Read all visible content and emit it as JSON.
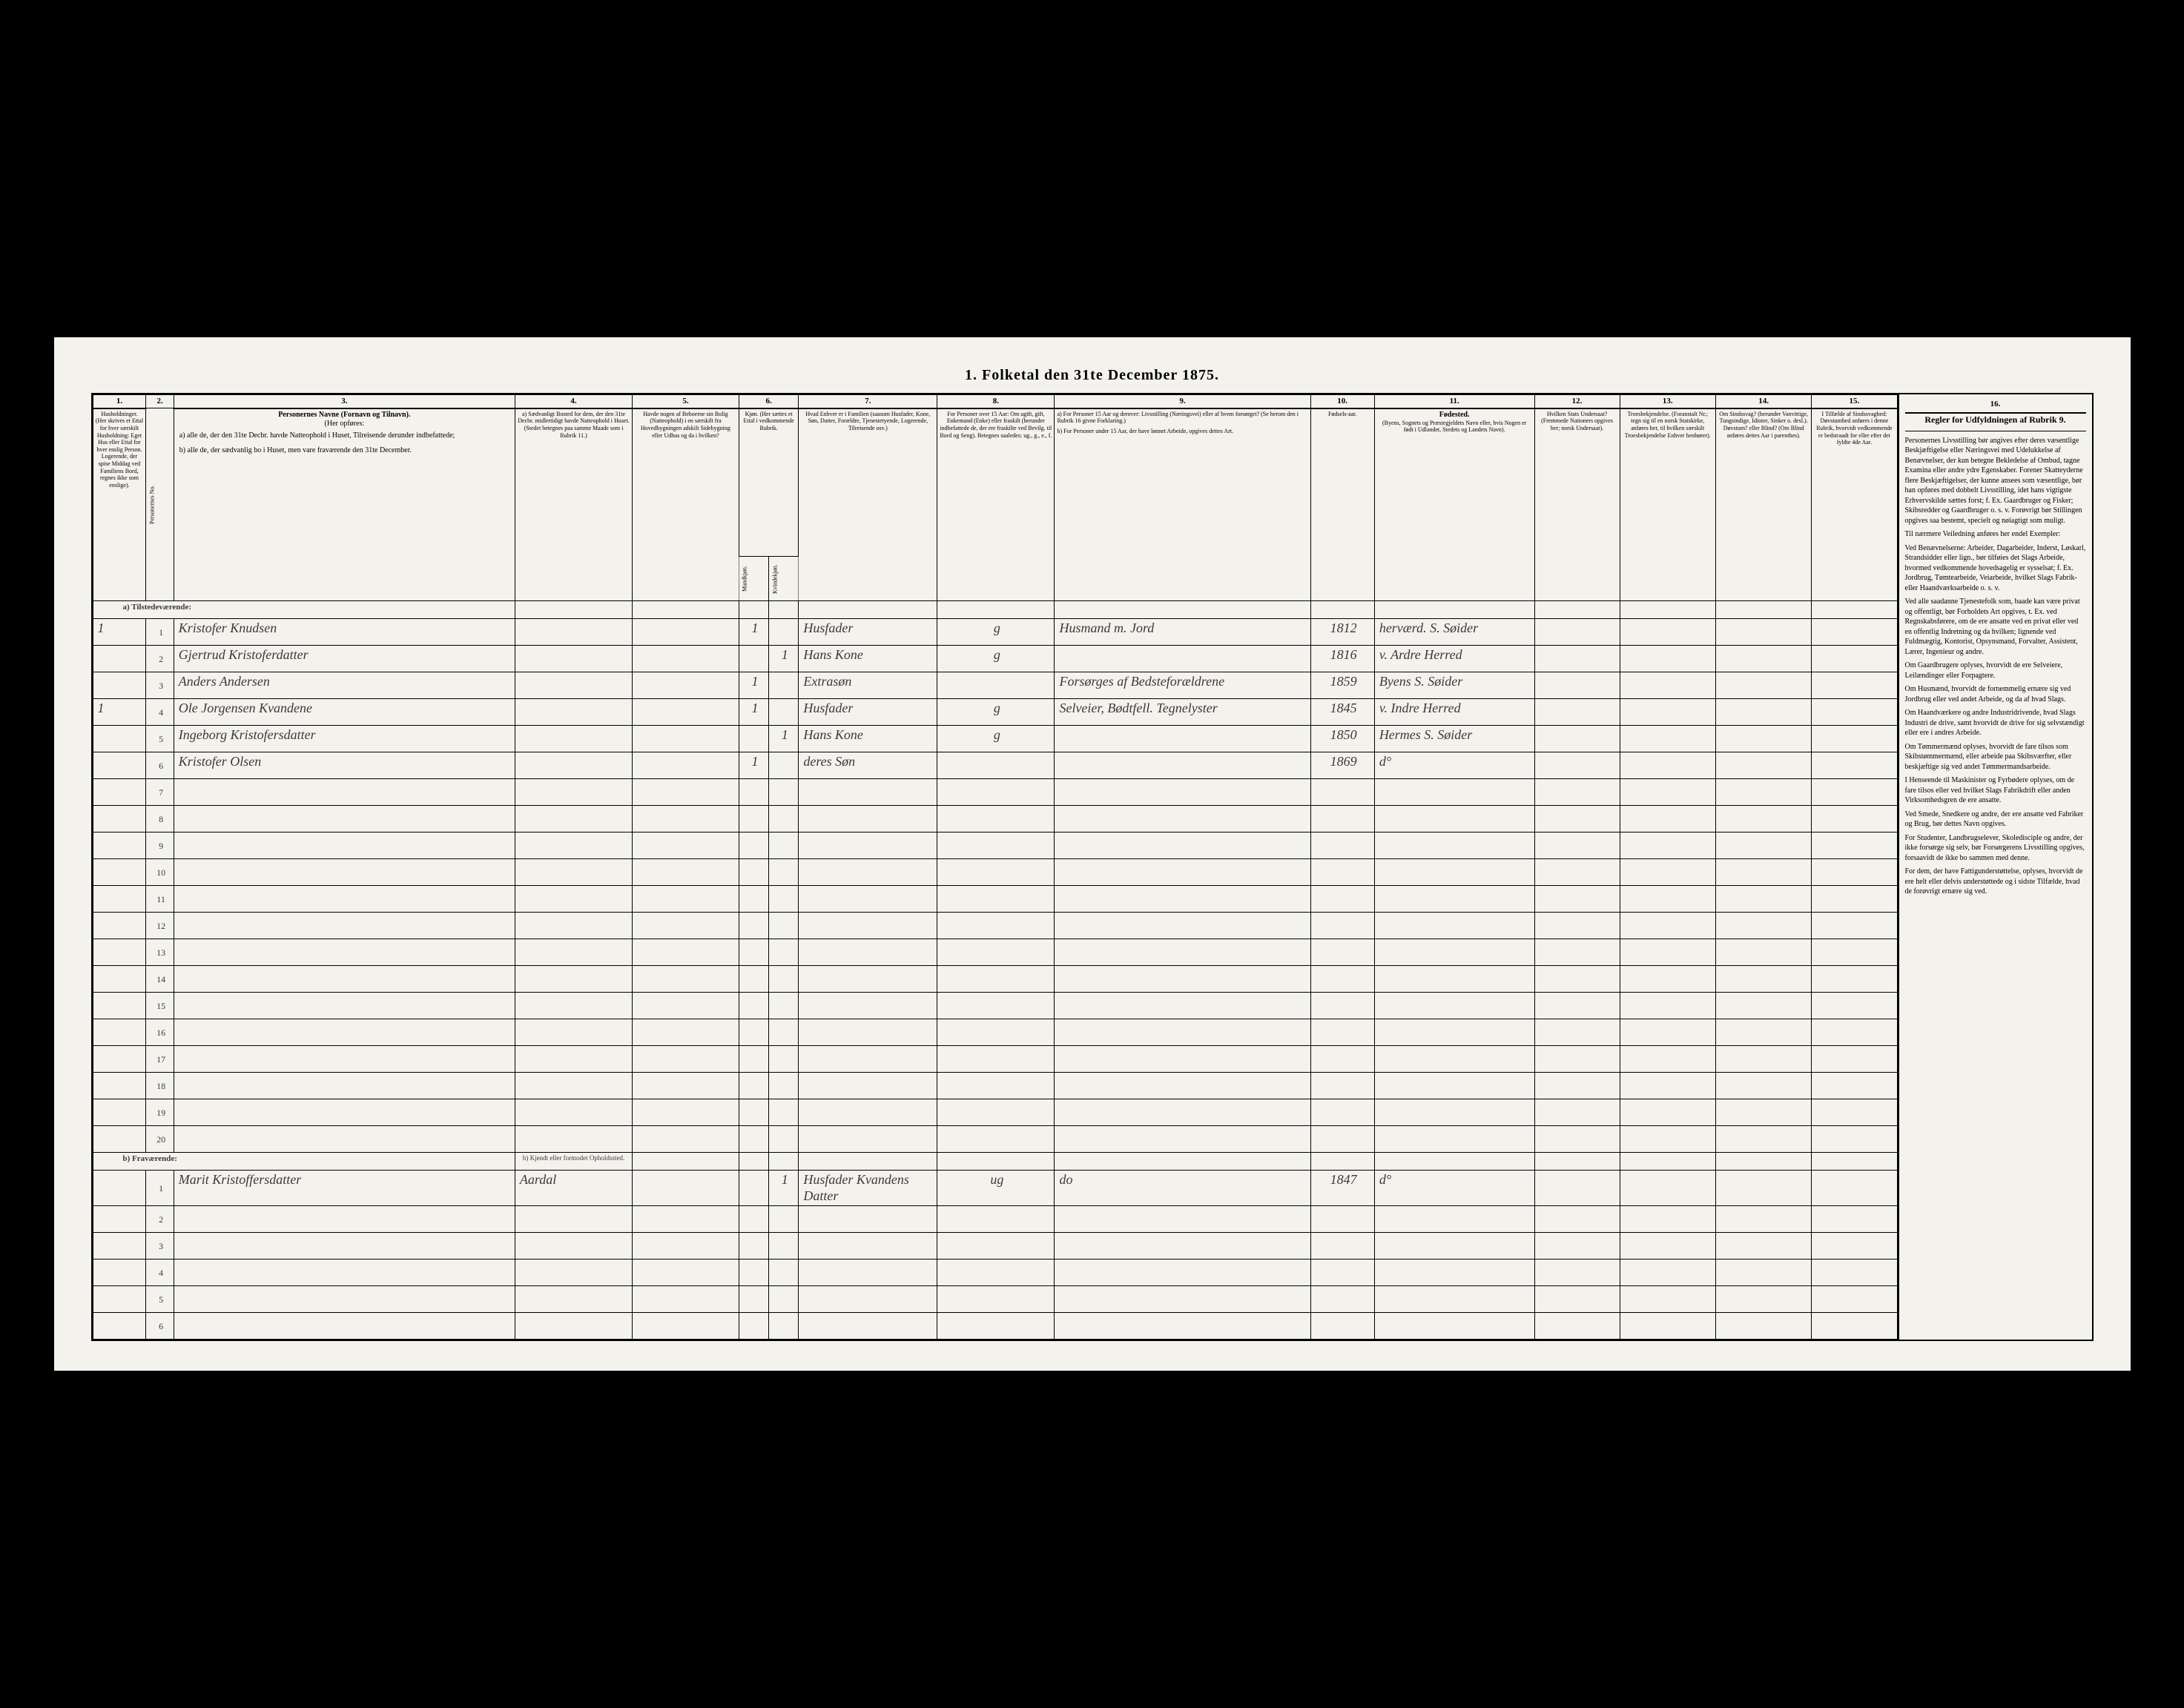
{
  "title": "1. Folketal den 31te December 1875.",
  "columns": {
    "c1": "1.",
    "c2": "2.",
    "c3": "3.",
    "c4": "4.",
    "c5": "5.",
    "c6": "6.",
    "c7": "7.",
    "c8": "8.",
    "c9": "9.",
    "c10": "10.",
    "c11": "11.",
    "c12": "12.",
    "c13": "13.",
    "c14": "14.",
    "c15": "15.",
    "c16": "16."
  },
  "headers": {
    "h1": "Husholdninger. (Her skrives et Ettal for hver særskilt Husholdning: Eget Hus eller Ettal for hver enslig Person. Logerende, der spise Middag ved Familiens Bord, regnes ikke som enslige).",
    "h2": "Personernes No.",
    "h3_title": "Personernes Navne (Fornavn og Tilnavn).",
    "h3_sub": "(Her opføres:",
    "h3_a": "a) alle de, der den 31te Decbr. havde Natteophold i Huset, Tilreisende derunder indbefattede;",
    "h3_b": "b) alle de, der sædvanlig bo i Huset, men vare fraværende den 31te December.",
    "h4": "a) Sædvanligt Bosted for dem, der den 31te Decbr. midlertidigt havde Natteophold i Huset. (Stedet betegnes paa samme Maade som i Rubrik 11.)",
    "h5": "Havde nogen af Beboerne sin Bolig (Natteophold) i en særskilt fra Hovedbygningen adskilt Sidebygning eller Udhus og da i hvilken?",
    "h6": "Kjøn. (Her sættes et Ettal i vedkommende Rubrik.",
    "h6_m": "Mandkjøn.",
    "h6_k": "Kvindekjøn.",
    "h7": "Hvad Enhver er i Familien (saasom Husfader, Kone, Søn, Datter, Forældre, Tjenestetyende, Logerende, Tilreisende osv.)",
    "h8": "For Personer over 15 Aar: Om ugift, gift, Enkemand (Enke) eller fraskilt (herunder indbefattede de, der ere fraskilte ved Bevilg. til Bord og Seng). Betegnes saaledes: ug., g., e., f.",
    "h9_a": "a) For Personer 15 Aar og derover: Livsstilling (Næringsvei) eller af hvem forsørget? (Se herom den i Rubrik 16 givne Forklaring.)",
    "h9_b": "b) For Personer under 15 Aar, der have lønnet Arbeide, opgives dettes Art.",
    "h10": "Fødsels-aar.",
    "h11_title": "Fødested.",
    "h11_sub": "(Byens, Sognets og Præstegjeldets Navn eller, hvis Nogen er født i Udlandet, Stedets og Landets Navn).",
    "h12": "Hvilken Stats Undersaat? (Fremmede Nationers opgives her; norsk Undersaat).",
    "h13": "Troesbekjendelse. (Foranstalt Nr.; tegn sig til en norsk Statskirke, anføres her, til hvilken særskilt Troesbekjendelse Enhver henhører).",
    "h14": "Om Sindssvag? (herunder Vanvittige, Tungsindige, Idioter, Sinker o. desl.). Døvstum? eller Blind? (Om Blind anføres dettes Aar i parenthes).",
    "h15": "I Tilfælde af Sindssvaghed: Døvstumhed anføres i denne Rubrik, hvorvidt vedkommende er bedstraadt for eller efter det fyldte 4de Aar.",
    "h16_title": "Regler for Udfyldningen af Rubrik 9."
  },
  "sections": {
    "present": "a) Tilstedeværende:",
    "absent": "b) Fraværende:",
    "absent_col4": "b) Kjendt eller formodet Opholdssted."
  },
  "rows": [
    {
      "hh": "1",
      "no": "1",
      "name": "Kristofer Knudsen",
      "c6m": "1",
      "c7": "Husfader",
      "c8": "g",
      "c9": "Husmand m. Jord",
      "c10": "1812",
      "c11": "herværd. S. Søider"
    },
    {
      "hh": "",
      "no": "2",
      "name": "Gjertrud Kristoferdatter",
      "c6k": "1",
      "c7": "Hans Kone",
      "c8": "g",
      "c9": "",
      "c10": "1816",
      "c11": "v. Ardre Herred"
    },
    {
      "hh": "",
      "no": "3",
      "name": "Anders Andersen",
      "c6m": "1",
      "c7": "Extrasøn",
      "c8": "",
      "c9": "Forsørges af Bedsteforældrene",
      "c10": "1859",
      "c11": "Byens S. Søider"
    },
    {
      "hh": "1",
      "no": "4",
      "name": "Ole Jorgensen Kvandene",
      "c6m": "1",
      "c7": "Husfader",
      "c8": "g",
      "c9": "Selveier, Bødtfell. Tegnelyster",
      "c10": "1845",
      "c11": "v. Indre Herred"
    },
    {
      "hh": "",
      "no": "5",
      "name": "Ingeborg Kristofersdatter",
      "c6k": "1",
      "c7": "Hans Kone",
      "c8": "g",
      "c9": "",
      "c10": "1850",
      "c11": "Hermes S. Søider"
    },
    {
      "hh": "",
      "no": "6",
      "name": "Kristofer Olsen",
      "c6m": "1",
      "c7": "deres Søn",
      "c8": "",
      "c9": "",
      "c10": "1869",
      "c11": "d°"
    }
  ],
  "absent_rows": [
    {
      "no": "1",
      "name": "Marit Kristoffersdatter",
      "c4": "Aardal",
      "c6k": "1",
      "c7": "Husfader Kvandens Datter",
      "c8": "ug",
      "c9": "do",
      "c10": "1847",
      "c11": "d°"
    }
  ],
  "rubric_text": {
    "p1": "Personernes Livsstilling bør angives efter deres væsentlige Beskjæftigelse eller Næringsvei med Udelukkelse af Benævnelser, der kun betegne Bekledelse af Ombud, tagne Examina eller andre ydre Egenskaber. Forener Skatteyderne flere Beskjæftigelser, der kunne ansees som væsentlige, bør han opføres med dobbelt Livsstilling, idet hans vigtigste Erhvervskilde sættes forst; f. Ex. Gaardbruger og Fisker; Skibsredder og Gaardbruger o. s. v. Forøvrigt bør Stillingen opgives saa bestemt, specielt og nøiagtigt som muligt.",
    "p2": "Til nærmere Veiledning anføres her endel Exempler:",
    "p3": "Ved Benævnelserne: Arbeider, Dagarbeider, Inderst, Løskarl, Strandsidder eller lign., bør tilføies det Slags Arbeide, hvormed vedkommende hovedsagelig er sysselsat; f. Ex. Jordbrug, Tømtearbeide, Veiarbeide, hvilket Slags Fabrik- eller Haandværksarbeide o. s. v.",
    "p4": "Ved alle saadanne Tjenestefolk som, baade kan være privat og offentligt, bør Forholdets Art opgives, t. Ex. ved Regnskabsførere, om de ere ansatte ved en privat eller ved en offentlig Indretning og da hvilken; lignende ved Fuldmægtig, Kontorist, Opsynsmand, Forvalter, Assistent, Lærer, Ingenieur og andre.",
    "p5": "Om Gaardbrugere oplyses, hvorvidt de ere Selveiere, Leilændinger eller Forpagtere.",
    "p6": "Om Husmænd, hvorvidt de fornemmelig ernære sig ved Jordbrug eller ved andet Arbeide, og da af hvad Slags.",
    "p7": "Om Haandværkere og andre Industridrivende, hvad Slags Industri de drive, samt hvorvidt de drive for sig selvstændigt eller ere i andres Arbeide.",
    "p8": "Om Tømmermænd oplyses, hvorvidt de fare tilsos som Skibstømmermænd, eller arbeide paa Skibsværfter, eller beskjæftige sig ved andet Tømmermandsarbeide.",
    "p9": "I Henseende til Maskinister og Fyrbødere oplyses, om de fare tilsos eller ved hvilket Slags Fabrikdrift eller anden Virksomhedsgren de ere ansatte.",
    "p10": "Ved Smede, Snedkere og andre, der ere ansatte ved Fabriker og Brug, bør dettes Navn opgives.",
    "p11": "For Studenter, Landbrugselever, Skoledisciple og andre, der ikke forsørge sig selv, bør Forsørgerens Livsstilling opgives, forsaavidt de ikke bo sammen med denne.",
    "p12": "For dem, der have Fattigunderstøttelse, oplyses, hvorvidt de ere helt eller delvis understøttede og i sidste Tilfælde, hvad de forøvrigt ernære sig ved."
  }
}
